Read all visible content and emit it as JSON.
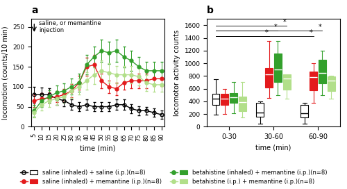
{
  "chart_data": [
    {
      "type": "line",
      "title": "a",
      "x_label": "time (min)",
      "y_label": "locomotion (counts/10 min)",
      "x": [
        5,
        10,
        15,
        20,
        25,
        30,
        35,
        40,
        45,
        50,
        55,
        60,
        65,
        70,
        75,
        80,
        85,
        90
      ],
      "xlim": [
        3,
        92
      ],
      "xticks": [
        5,
        10,
        15,
        20,
        25,
        30,
        35,
        40,
        45,
        50,
        55,
        60,
        65,
        70,
        75,
        80,
        85,
        90
      ],
      "ylim": [
        0,
        270
      ],
      "yticks": [
        0,
        50,
        100,
        150,
        200,
        250
      ],
      "legend": "lower center",
      "annotations": [
        {
          "text": "saline, or memantine\ninjection",
          "x": 5
        }
      ],
      "series": [
        {
          "name": "saline (inhaled) + saline (i.p.)(n=8)",
          "color": "#000000",
          "marker": "open circle",
          "values": [
            80,
            80,
            80,
            70,
            65,
            55,
            50,
            55,
            50,
            50,
            50,
            55,
            55,
            45,
            40,
            40,
            35,
            30
          ],
          "errors": [
            20,
            18,
            16,
            15,
            14,
            13,
            12,
            13,
            12,
            12,
            12,
            13,
            13,
            12,
            11,
            10,
            10,
            10
          ]
        },
        {
          "name": "saline (inhaled) + memantine (i.p.)(n=8)",
          "color": "#e31a1c",
          "marker": "circle",
          "values": [
            65,
            70,
            72,
            75,
            80,
            90,
            110,
            150,
            155,
            115,
            100,
            95,
            110,
            115,
            115,
            115,
            120,
            120
          ],
          "errors": [
            15,
            14,
            13,
            14,
            15,
            16,
            18,
            22,
            24,
            18,
            16,
            16,
            18,
            18,
            18,
            18,
            18,
            18
          ]
        },
        {
          "name": "betahistine (inhaled) + memantine (i.p.)(n=8)",
          "color": "#33a02c",
          "marker": "circle",
          "values": [
            40,
            65,
            75,
            85,
            90,
            100,
            110,
            155,
            175,
            190,
            185,
            190,
            175,
            165,
            150,
            140,
            140,
            140
          ],
          "errors": [
            15,
            16,
            16,
            18,
            18,
            20,
            22,
            24,
            26,
            28,
            28,
            28,
            26,
            25,
            24,
            22,
            22,
            22
          ]
        },
        {
          "name": "betahistine (i.p.) + memantine (i.p.)(n=8)",
          "color": "#b2df8a",
          "marker": "circle",
          "values": [
            35,
            55,
            65,
            70,
            75,
            90,
            100,
            115,
            130,
            140,
            135,
            130,
            130,
            130,
            125,
            110,
            105,
            105
          ],
          "errors": [
            12,
            14,
            15,
            16,
            16,
            18,
            20,
            22,
            24,
            26,
            24,
            22,
            22,
            22,
            22,
            20,
            18,
            18
          ]
        }
      ]
    },
    {
      "type": "box",
      "title": "b",
      "x_label": "time (min)",
      "y_label": "locomotor activity counts",
      "categories": [
        "0-30",
        "30-60",
        "60-90"
      ],
      "ylim": [
        0,
        1700
      ],
      "yticks": [
        0,
        200,
        400,
        600,
        800,
        1000,
        1200,
        1400,
        1600
      ],
      "series": [
        {
          "name": "saline (inhaled) + saline (i.p.)(n=8)",
          "color": "#ffffff",
          "boxes": [
            {
              "q1": 340,
              "median": 440,
              "q3": 520,
              "whislo": 190,
              "whishi": 750
            },
            {
              "q1": 155,
              "median": 225,
              "q3": 370,
              "whislo": 50,
              "whishi": 400
            },
            {
              "q1": 145,
              "median": 210,
              "q3": 340,
              "whislo": 50,
              "whishi": 370
            }
          ]
        },
        {
          "name": "saline (inhaled) + memantine (i.p.)(n=8)",
          "color": "#e31a1c",
          "boxes": [
            {
              "q1": 340,
              "median": 440,
              "q3": 520,
              "whislo": 200,
              "whishi": 600
            },
            {
              "q1": 620,
              "median": 820,
              "q3": 920,
              "whislo": 450,
              "whishi": 1350
            },
            {
              "q1": 570,
              "median": 780,
              "q3": 870,
              "whislo": 380,
              "whishi": 1000
            }
          ]
        },
        {
          "name": "betahistine (inhaled) + memantine (i.p.)(n=8)",
          "color": "#33a02c",
          "boxes": [
            {
              "q1": 370,
              "median": 460,
              "q3": 530,
              "whislo": 210,
              "whishi": 700
            },
            {
              "q1": 700,
              "median": 900,
              "q3": 1150,
              "whislo": 500,
              "whishi": 1350
            },
            {
              "q1": 680,
              "median": 850,
              "q3": 1050,
              "whislo": 500,
              "whishi": 1200
            }
          ]
        },
        {
          "name": "betahistine (i.p.) + memantine (i.p.)(n=8)",
          "color": "#b2df8a",
          "boxes": [
            {
              "q1": 240,
              "median": 390,
              "q3": 470,
              "whislo": 145,
              "whishi": 700
            },
            {
              "q1": 580,
              "median": 760,
              "q3": 820,
              "whislo": 440,
              "whishi": 800
            },
            {
              "q1": 560,
              "median": 730,
              "q3": 795,
              "whislo": 440,
              "whishi": 800
            }
          ]
        }
      ],
      "annotations": [
        {
          "text": "*",
          "from": [
            "0-30",
            "saline (inhaled) + saline (i.p.)(n=8)"
          ],
          "to": [
            "30-60",
            "saline (inhaled) + memantine (i.p.)(n=8)"
          ]
        },
        {
          "text": "*",
          "from": [
            "0-30",
            "saline (inhaled) + saline (i.p.)(n=8)"
          ],
          "to": [
            "30-60",
            "betahistine (inhaled) + memantine (i.p.)(n=8)"
          ]
        },
        {
          "text": "*",
          "from": [
            "0-30",
            "saline (inhaled) + saline (i.p.)(n=8)"
          ],
          "to": [
            "30-60",
            "betahistine (i.p.) + memantine (i.p.)(n=8)"
          ]
        },
        {
          "text": "*",
          "from": [
            "0-30",
            "saline (inhaled) + saline (i.p.)(n=8)"
          ],
          "to": [
            "60-90",
            "saline (inhaled) + memantine (i.p.)(n=8)"
          ]
        },
        {
          "text": "*",
          "from": [
            "0-30",
            "saline (inhaled) + saline (i.p.)(n=8)"
          ],
          "to": [
            "60-90",
            "betahistine (inhaled) + memantine (i.p.)(n=8)"
          ]
        }
      ]
    }
  ]
}
